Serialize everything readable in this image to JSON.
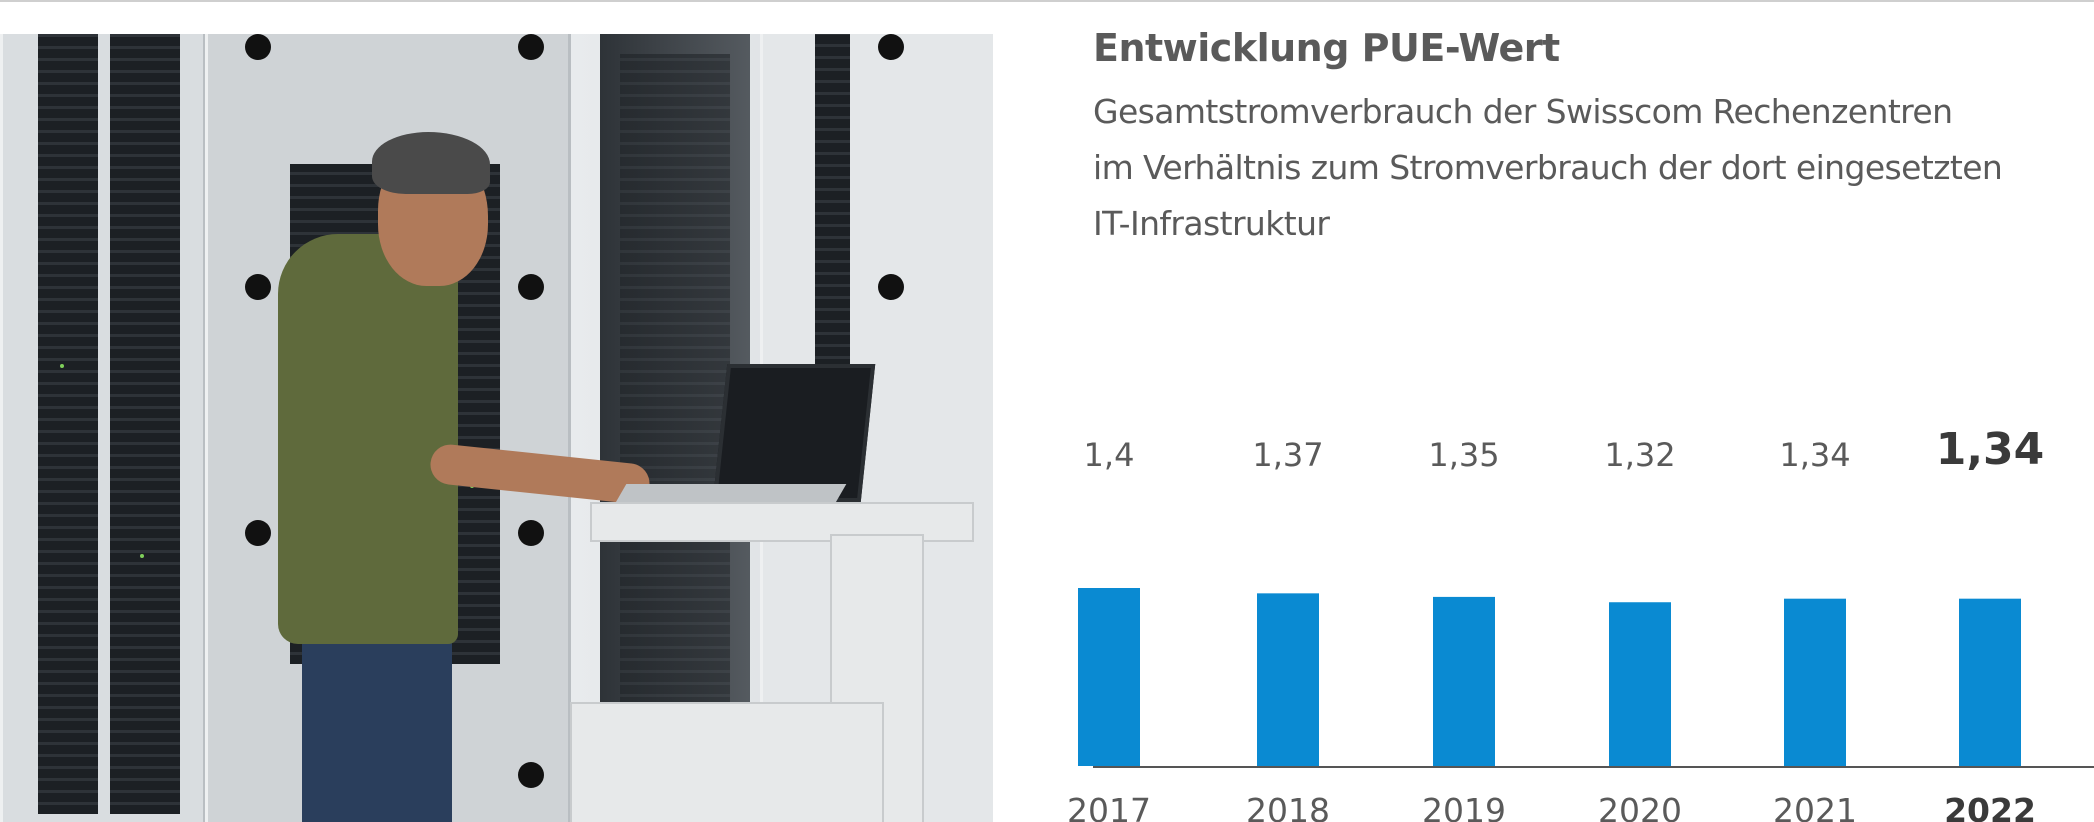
{
  "header": {
    "title": "Entwicklung PUE-Wert",
    "subtitle_lines": [
      "Gesamtstromverbrauch der Swisscom Rechenzentren",
      "im Verhältnis zum Stromverbrauch der dort eingesetzten",
      "IT-Infrastruktur"
    ]
  },
  "colors": {
    "bar": "#0a8ad2",
    "axis": "#555555",
    "text": "#5a5a5a",
    "highlight_text": "#3a3a3a"
  },
  "chart_data": {
    "type": "bar",
    "title": "Entwicklung PUE-Wert",
    "categories": [
      "2017",
      "2018",
      "2019",
      "2020",
      "2021",
      "2022"
    ],
    "values": [
      1.4,
      1.37,
      1.35,
      1.32,
      1.34,
      1.34
    ],
    "value_labels": [
      "1,4",
      "1,37",
      "1,35",
      "1,32",
      "1,34",
      "1,34"
    ],
    "highlight_index": 5,
    "xlabel": "",
    "ylabel": "",
    "ylim": [
      0,
      1.4
    ],
    "grid": false,
    "legend": "none"
  }
}
